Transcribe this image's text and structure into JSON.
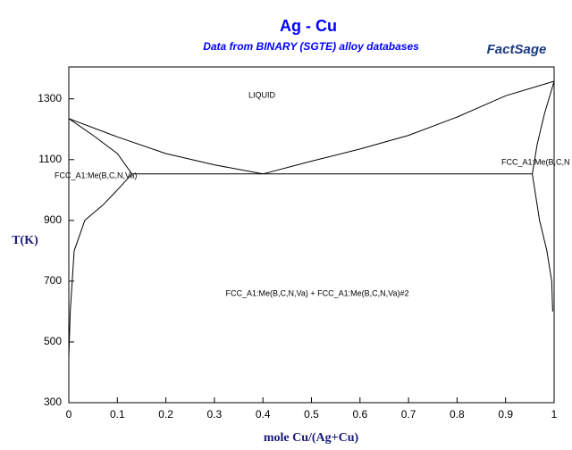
{
  "chart_data": {
    "type": "line",
    "title": "Ag - Cu",
    "subtitle": "Data from BINARY (SGTE) alloy databases",
    "logo": "FactSage",
    "xlabel": "mole Cu/(Ag+Cu)",
    "ylabel": "T(K)",
    "xlim": [
      0,
      1
    ],
    "ylim": [
      300,
      1405
    ],
    "xticks": [
      0,
      0.1,
      0.2,
      0.3,
      0.4,
      0.5,
      0.6,
      0.7,
      0.8,
      0.9,
      1
    ],
    "yticks": [
      300,
      500,
      700,
      900,
      1100,
      1300
    ],
    "annotations": [
      "LIQUID",
      "FCC_A1:Me(B,C,N,Va)",
      "FCC_A1:Me(B,C,N",
      "FCC_A1:Me(B,C,N,Va) + FCC_A1:Me(B,C,N,Va)#2"
    ],
    "series": [
      {
        "color": "#000000",
        "x": [
          0,
          0.1,
          0.2,
          0.3,
          0.4
        ],
        "values": [
          1235,
          1175,
          1120,
          1083,
          1053
        ]
      },
      {
        "color": "#000000",
        "x": [
          0.4,
          0.5,
          0.6,
          0.7,
          0.8,
          0.9,
          1
        ],
        "values": [
          1053,
          1095,
          1135,
          1180,
          1240,
          1310,
          1358
        ]
      },
      {
        "color": "#000000",
        "x": [
          0,
          0.05,
          0.1,
          0.13
        ],
        "values": [
          1235,
          1180,
          1120,
          1053
        ]
      },
      {
        "color": "#000000",
        "x": [
          0.13,
          0.1,
          0.07,
          0.033,
          0.011,
          0.003,
          0
        ],
        "values": [
          1053,
          1000,
          950,
          900,
          800,
          600,
          450
        ]
      },
      {
        "color": "#000000",
        "x": [
          0.13,
          0.955
        ],
        "values": [
          1053,
          1053
        ]
      },
      {
        "color": "#000000",
        "x": [
          0.955,
          0.965,
          0.98,
          1
        ],
        "values": [
          1053,
          1150,
          1250,
          1358
        ]
      },
      {
        "color": "#000000",
        "x": [
          0.955,
          0.97,
          0.985,
          0.995,
          0.997
        ],
        "values": [
          1053,
          900,
          800,
          700,
          600
        ]
      }
    ]
  }
}
